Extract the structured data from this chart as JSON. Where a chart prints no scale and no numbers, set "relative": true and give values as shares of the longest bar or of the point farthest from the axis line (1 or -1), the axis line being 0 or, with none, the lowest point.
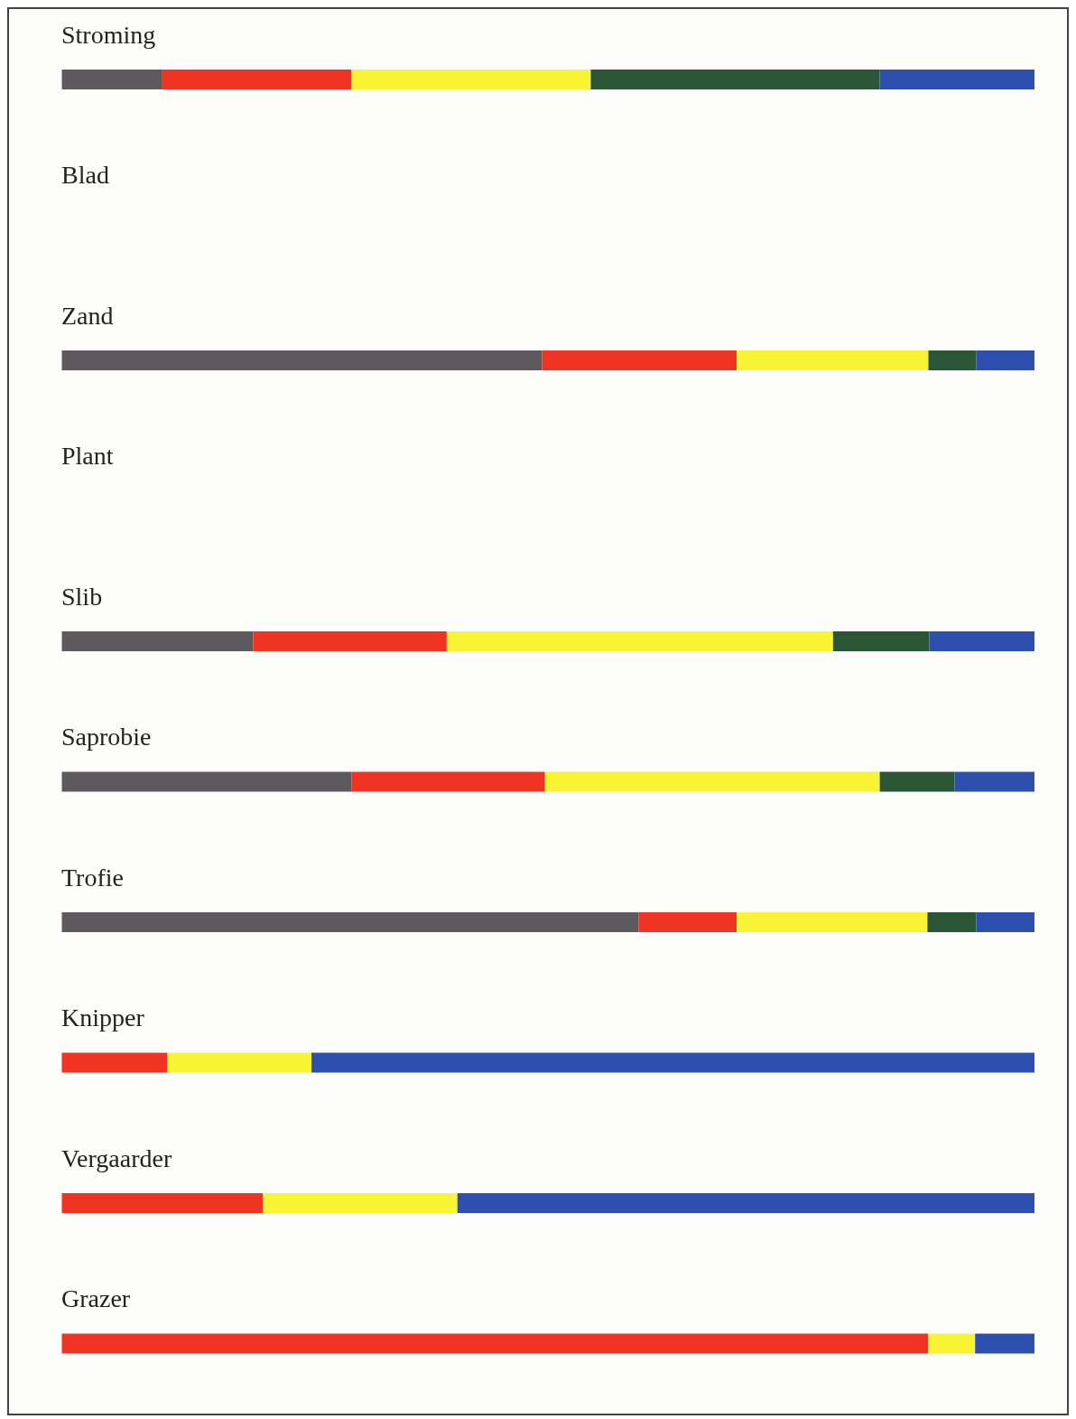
{
  "chart_data": {
    "type": "bar",
    "orientation": "horizontal",
    "stacked": true,
    "relative": true,
    "categories": [
      "Stroming",
      "Blad",
      "Zand",
      "Plant",
      "Slib",
      "Saprobie",
      "Trofie",
      "Knipper",
      "Vergaarder",
      "Grazer"
    ],
    "series": [
      {
        "color": "#5c5a5c",
        "values": [
          0.103,
          null,
          0.494,
          null,
          0.197,
          0.298,
          0.593,
          null,
          null,
          null
        ]
      },
      {
        "color": "#f03424",
        "values": [
          0.195,
          null,
          0.2,
          null,
          0.199,
          0.199,
          0.101,
          0.109,
          0.207,
          0.891
        ]
      },
      {
        "color": "#f8f433",
        "values": [
          0.246,
          null,
          0.197,
          null,
          0.397,
          0.344,
          0.196,
          0.148,
          0.2,
          0.048
        ]
      },
      {
        "color": "#2b5636",
        "values": [
          0.297,
          null,
          0.049,
          null,
          0.099,
          0.077,
          0.05,
          null,
          null,
          null
        ]
      },
      {
        "color": "#2d4fae",
        "values": [
          0.159,
          null,
          0.06,
          null,
          0.108,
          0.082,
          0.06,
          0.743,
          0.593,
          0.061
        ]
      }
    ]
  }
}
